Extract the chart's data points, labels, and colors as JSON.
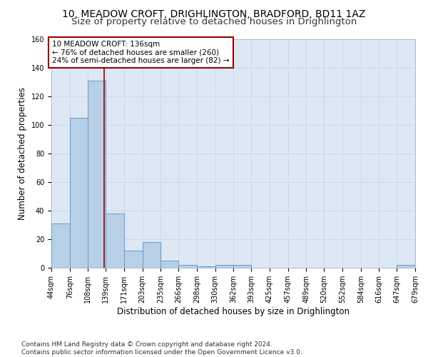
{
  "title_line1": "10, MEADOW CROFT, DRIGHLINGTON, BRADFORD, BD11 1AZ",
  "title_line2": "Size of property relative to detached houses in Drighlington",
  "xlabel": "Distribution of detached houses by size in Drighlington",
  "ylabel": "Number of detached properties",
  "bin_edges": [
    44,
    76,
    108,
    139,
    171,
    203,
    235,
    266,
    298,
    330,
    362,
    393,
    425,
    457,
    489,
    520,
    552,
    584,
    616,
    647,
    679
  ],
  "bar_heights": [
    31,
    105,
    131,
    38,
    12,
    18,
    5,
    2,
    1,
    2,
    2,
    0,
    0,
    0,
    0,
    0,
    0,
    0,
    0,
    2
  ],
  "bar_color": "#b8cfe8",
  "bar_edge_color": "#6699cc",
  "vline_x": 136,
  "vline_color": "#990000",
  "annotation_text": "10 MEADOW CROFT: 136sqm\n← 76% of detached houses are smaller (260)\n24% of semi-detached houses are larger (82) →",
  "annotation_box_color": "#ffffff",
  "annotation_box_edge_color": "#990000",
  "ylim": [
    0,
    160
  ],
  "yticks": [
    0,
    20,
    40,
    60,
    80,
    100,
    120,
    140,
    160
  ],
  "grid_color": "#c8d4e8",
  "background_color": "#dde8f4",
  "footer_text": "Contains HM Land Registry data © Crown copyright and database right 2024.\nContains public sector information licensed under the Open Government Licence v3.0.",
  "title1_fontsize": 10,
  "title2_fontsize": 9.5,
  "axis_label_fontsize": 8.5,
  "tick_fontsize": 7,
  "annotation_fontsize": 7.5,
  "footer_fontsize": 6.5
}
